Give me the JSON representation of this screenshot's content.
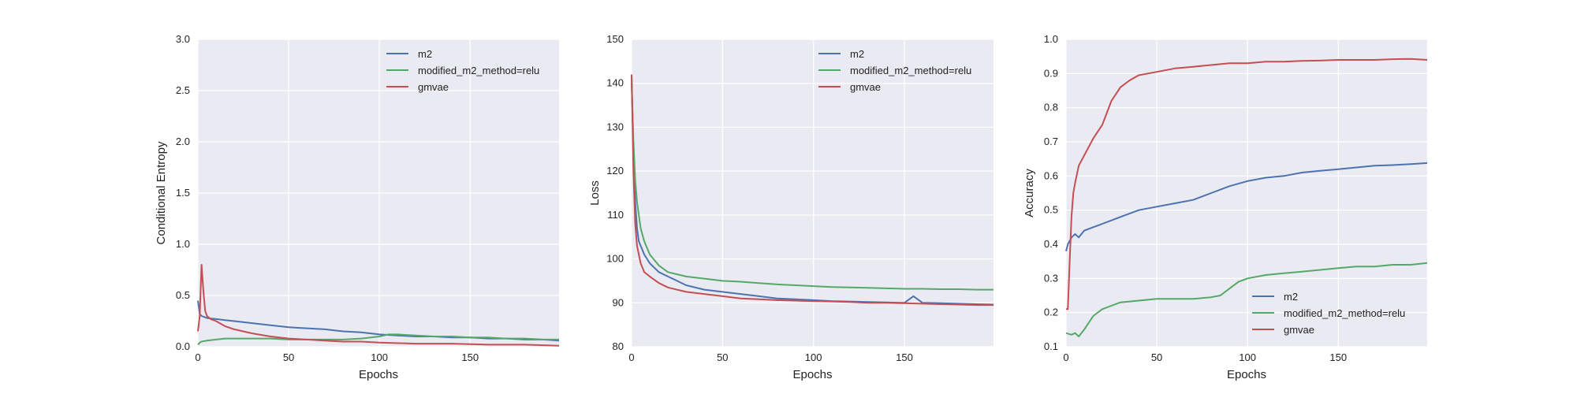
{
  "style": {
    "plot_bg": "#eaeaf2",
    "grid": "#ffffff"
  },
  "chart_data": [
    {
      "type": "line",
      "xlabel": "Epochs",
      "ylabel": "Conditional Entropy",
      "xlim": [
        0,
        199
      ],
      "ylim": [
        0,
        3.0
      ],
      "xticks": [
        "0",
        "50",
        "100",
        "150"
      ],
      "xtick_values": [
        0,
        50,
        100,
        150
      ],
      "yticks": [
        "0.0",
        "0.5",
        "1.0",
        "1.5",
        "2.0",
        "2.5",
        "3.0"
      ],
      "ytick_values": [
        0,
        0.5,
        1.0,
        1.5,
        2.0,
        2.5,
        3.0
      ],
      "legend_position": "top-right",
      "series": [
        {
          "name": "m2",
          "color": "#4c72b0",
          "x": [
            0,
            1,
            2,
            5,
            10,
            15,
            20,
            30,
            40,
            50,
            60,
            70,
            80,
            90,
            100,
            110,
            120,
            130,
            140,
            150,
            160,
            170,
            180,
            190,
            199
          ],
          "y": [
            0.45,
            0.32,
            0.3,
            0.28,
            0.27,
            0.26,
            0.25,
            0.23,
            0.21,
            0.19,
            0.18,
            0.17,
            0.15,
            0.14,
            0.12,
            0.11,
            0.1,
            0.1,
            0.09,
            0.09,
            0.08,
            0.08,
            0.07,
            0.07,
            0.06
          ]
        },
        {
          "name": "modified_m2_method=relu",
          "color": "#55a868",
          "x": [
            0,
            1,
            2,
            5,
            10,
            15,
            20,
            30,
            40,
            50,
            60,
            70,
            80,
            90,
            100,
            105,
            110,
            120,
            130,
            140,
            150,
            160,
            170,
            180,
            190,
            199
          ],
          "y": [
            0.02,
            0.04,
            0.05,
            0.06,
            0.07,
            0.08,
            0.08,
            0.08,
            0.08,
            0.07,
            0.07,
            0.07,
            0.07,
            0.08,
            0.1,
            0.12,
            0.12,
            0.11,
            0.1,
            0.1,
            0.09,
            0.09,
            0.08,
            0.08,
            0.07,
            0.07
          ]
        },
        {
          "name": "gmvae",
          "color": "#c44e52",
          "x": [
            0,
            1,
            2,
            3,
            4,
            5,
            7,
            10,
            15,
            20,
            30,
            40,
            50,
            60,
            70,
            80,
            90,
            100,
            120,
            140,
            160,
            180,
            199
          ],
          "y": [
            0.15,
            0.3,
            0.8,
            0.55,
            0.35,
            0.3,
            0.27,
            0.25,
            0.2,
            0.17,
            0.13,
            0.1,
            0.08,
            0.07,
            0.06,
            0.05,
            0.05,
            0.04,
            0.03,
            0.03,
            0.02,
            0.02,
            0.01
          ]
        }
      ]
    },
    {
      "type": "line",
      "xlabel": "Epochs",
      "ylabel": "Loss",
      "xlim": [
        0,
        199
      ],
      "ylim": [
        80,
        150
      ],
      "xticks": [
        "0",
        "50",
        "100",
        "150"
      ],
      "xtick_values": [
        0,
        50,
        100,
        150
      ],
      "yticks": [
        "80",
        "90",
        "100",
        "110",
        "120",
        "130",
        "140",
        "150"
      ],
      "ytick_values": [
        80,
        90,
        100,
        110,
        120,
        130,
        140,
        150
      ],
      "legend_position": "top-right",
      "series": [
        {
          "name": "m2",
          "color": "#4c72b0",
          "x": [
            0,
            1,
            2,
            3,
            4,
            5,
            7,
            10,
            15,
            20,
            25,
            30,
            40,
            50,
            60,
            70,
            80,
            90,
            100,
            110,
            120,
            130,
            140,
            150,
            155,
            160,
            170,
            180,
            190,
            199
          ],
          "y": [
            142,
            125,
            113,
            107,
            104,
            103,
            101,
            99,
            97,
            96,
            95,
            94,
            93,
            92.5,
            92,
            91.5,
            91,
            90.8,
            90.6,
            90.4,
            90.3,
            90.2,
            90.1,
            90,
            91.5,
            90,
            89.9,
            89.8,
            89.7,
            89.6
          ]
        },
        {
          "name": "modified_m2_method=relu",
          "color": "#55a868",
          "x": [
            0,
            1,
            2,
            3,
            4,
            5,
            7,
            10,
            15,
            20,
            30,
            40,
            50,
            60,
            70,
            80,
            90,
            100,
            110,
            120,
            130,
            140,
            150,
            160,
            170,
            180,
            190,
            199
          ],
          "y": [
            140,
            127,
            118,
            113,
            110,
            107,
            104,
            101,
            98.5,
            97,
            96,
            95.5,
            95,
            94.8,
            94.5,
            94.2,
            94,
            93.8,
            93.6,
            93.5,
            93.4,
            93.3,
            93.2,
            93.2,
            93.1,
            93.1,
            93,
            93
          ]
        },
        {
          "name": "gmvae",
          "color": "#c44e52",
          "x": [
            0,
            1,
            2,
            3,
            4,
            5,
            7,
            10,
            15,
            20,
            30,
            40,
            50,
            60,
            70,
            80,
            90,
            100,
            110,
            120,
            130,
            140,
            150,
            160,
            170,
            180,
            190,
            199
          ],
          "y": [
            142,
            120,
            108,
            103,
            101,
            99,
            97,
            96,
            94.5,
            93.5,
            92.5,
            92,
            91.5,
            91,
            90.8,
            90.6,
            90.5,
            90.4,
            90.3,
            90.2,
            90,
            90,
            89.9,
            89.8,
            89.7,
            89.6,
            89.5,
            89.5
          ]
        }
      ]
    },
    {
      "type": "line",
      "xlabel": "Epochs",
      "ylabel": "Accuracy",
      "xlim": [
        0,
        199
      ],
      "ylim": [
        0.1,
        1.0
      ],
      "xticks": [
        "0",
        "50",
        "100",
        "150"
      ],
      "xtick_values": [
        0,
        50,
        100,
        150
      ],
      "yticks": [
        "0.1",
        "0.2",
        "0.3",
        "0.4",
        "0.5",
        "0.6",
        "0.7",
        "0.8",
        "0.9",
        "1.0"
      ],
      "ytick_values": [
        0.1,
        0.2,
        0.3,
        0.4,
        0.5,
        0.6,
        0.7,
        0.8,
        0.9,
        1.0
      ],
      "legend_position": "bottom-right",
      "series": [
        {
          "name": "m2",
          "color": "#4c72b0",
          "x": [
            0,
            1,
            2,
            3,
            5,
            7,
            10,
            15,
            20,
            25,
            30,
            40,
            50,
            60,
            70,
            80,
            90,
            100,
            110,
            120,
            130,
            140,
            150,
            160,
            170,
            180,
            190,
            199
          ],
          "y": [
            0.38,
            0.4,
            0.41,
            0.42,
            0.43,
            0.42,
            0.44,
            0.45,
            0.46,
            0.47,
            0.48,
            0.5,
            0.51,
            0.52,
            0.53,
            0.55,
            0.57,
            0.585,
            0.595,
            0.6,
            0.61,
            0.615,
            0.62,
            0.625,
            0.63,
            0.632,
            0.635,
            0.638
          ]
        },
        {
          "name": "modified_m2_method=relu",
          "color": "#55a868",
          "x": [
            0,
            3,
            5,
            7,
            10,
            15,
            20,
            25,
            30,
            40,
            50,
            60,
            70,
            80,
            85,
            90,
            95,
            100,
            110,
            120,
            130,
            140,
            150,
            160,
            170,
            180,
            190,
            199
          ],
          "y": [
            0.14,
            0.135,
            0.14,
            0.13,
            0.15,
            0.19,
            0.21,
            0.22,
            0.23,
            0.235,
            0.24,
            0.24,
            0.24,
            0.245,
            0.25,
            0.27,
            0.29,
            0.3,
            0.31,
            0.315,
            0.32,
            0.325,
            0.33,
            0.335,
            0.335,
            0.34,
            0.34,
            0.345
          ]
        },
        {
          "name": "gmvae",
          "color": "#c44e52",
          "x": [
            0,
            1,
            2,
            3,
            4,
            5,
            7,
            10,
            15,
            20,
            25,
            30,
            35,
            40,
            50,
            60,
            70,
            80,
            90,
            100,
            110,
            120,
            130,
            140,
            150,
            160,
            170,
            180,
            190,
            199
          ],
          "y": [
            0.21,
            0.21,
            0.35,
            0.48,
            0.55,
            0.58,
            0.63,
            0.66,
            0.71,
            0.75,
            0.82,
            0.86,
            0.88,
            0.895,
            0.905,
            0.915,
            0.92,
            0.925,
            0.93,
            0.93,
            0.935,
            0.935,
            0.937,
            0.938,
            0.94,
            0.94,
            0.94,
            0.942,
            0.943,
            0.94
          ]
        }
      ]
    }
  ]
}
